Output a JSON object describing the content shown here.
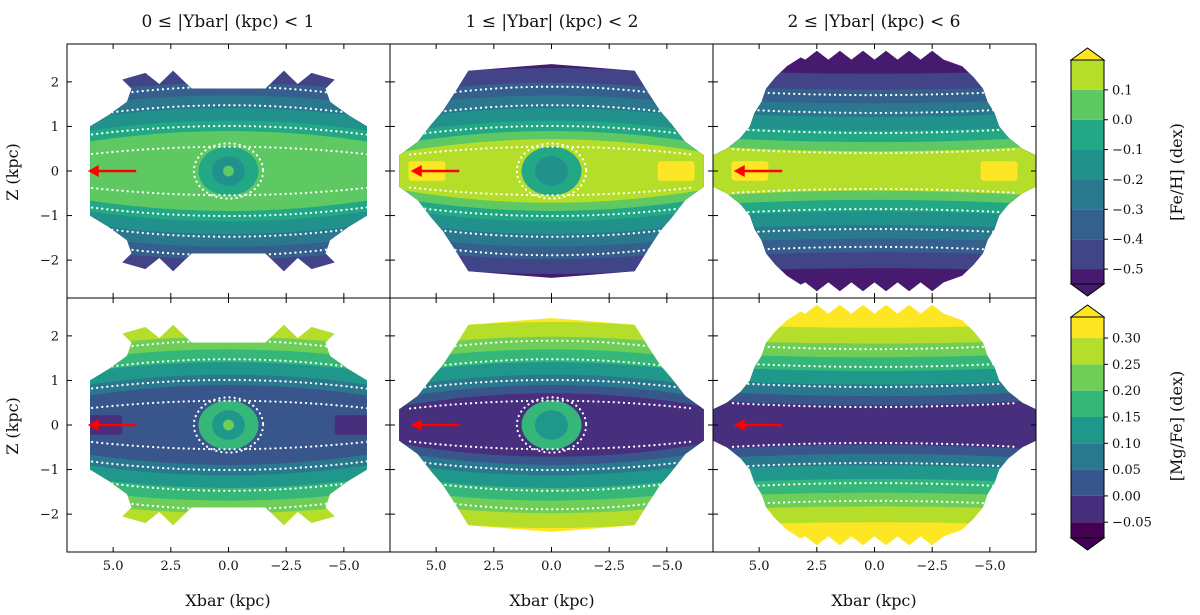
{
  "chart_data": {
    "type": "heatmap",
    "column_titles": [
      "0 ≤ |Ybar| (kpc) < 1",
      "1 ≤ |Ybar| (kpc) < 2",
      "2 ≤ |Ybar| (kpc) < 6"
    ],
    "xlabel": "Xbar (kpc)",
    "ylabel": "Z (kpc)",
    "xlim": [
      7,
      -7
    ],
    "ylim": [
      -2.85,
      2.85
    ],
    "xticks": [
      5.0,
      2.5,
      0.0,
      -2.5,
      -5.0
    ],
    "xtick_labels": [
      "5.0",
      "2.5",
      "0.0",
      "−2.5",
      "−5.0"
    ],
    "yticks": [
      2,
      1,
      0,
      -1,
      -2
    ],
    "ytick_labels": [
      "2",
      "1",
      "0",
      "−1",
      "−2"
    ],
    "rows": [
      {
        "quantity": "[Fe/H] (dex)",
        "colorbar_title": "[Fe/H] (dex)",
        "levels": [
          -0.5,
          -0.4,
          -0.3,
          -0.2,
          -0.1,
          0.0,
          0.1
        ],
        "level_labels": [
          "−0.5",
          "−0.4",
          "−0.3",
          "−0.2",
          "−0.1",
          "0.0",
          "0.1"
        ],
        "colorbar_range": [
          -0.55,
          0.2
        ],
        "band_colors": [
          "#461a6e",
          "#414487",
          "#355f8d",
          "#2a788e",
          "#21918c",
          "#22a884",
          "#5ec962",
          "#b5de2b",
          "#fde725"
        ],
        "plane_value": [
          0.12,
          0.05,
          0.12
        ],
        "far_value": -0.55,
        "center_hole": [
          -0.15,
          -0.1,
          null
        ]
      },
      {
        "quantity": "[Mg/Fe] (dex)",
        "colorbar_title": "[Mg/Fe] (dex)",
        "levels": [
          -0.05,
          0.0,
          0.05,
          0.1,
          0.15,
          0.2,
          0.25,
          0.3
        ],
        "level_labels": [
          "−0.05",
          "0.00",
          "0.05",
          "0.10",
          "0.15",
          "0.20",
          "0.25",
          "0.30"
        ],
        "colorbar_range": [
          -0.08,
          0.34
        ],
        "band_colors": [
          "#440154",
          "#472f7d",
          "#39568c",
          "#2a788e",
          "#1f988b",
          "#35b779",
          "#6ece58",
          "#b5de2b",
          "#fde725"
        ],
        "plane_value": [
          0.03,
          0.03,
          0.03
        ],
        "far_value": 0.33,
        "center_hole": [
          0.22,
          0.12,
          null
        ]
      }
    ],
    "arrow_annotation": {
      "color": "#ff0000",
      "from_x": 4.0,
      "to_x": 6.1,
      "z": 0.0
    }
  }
}
